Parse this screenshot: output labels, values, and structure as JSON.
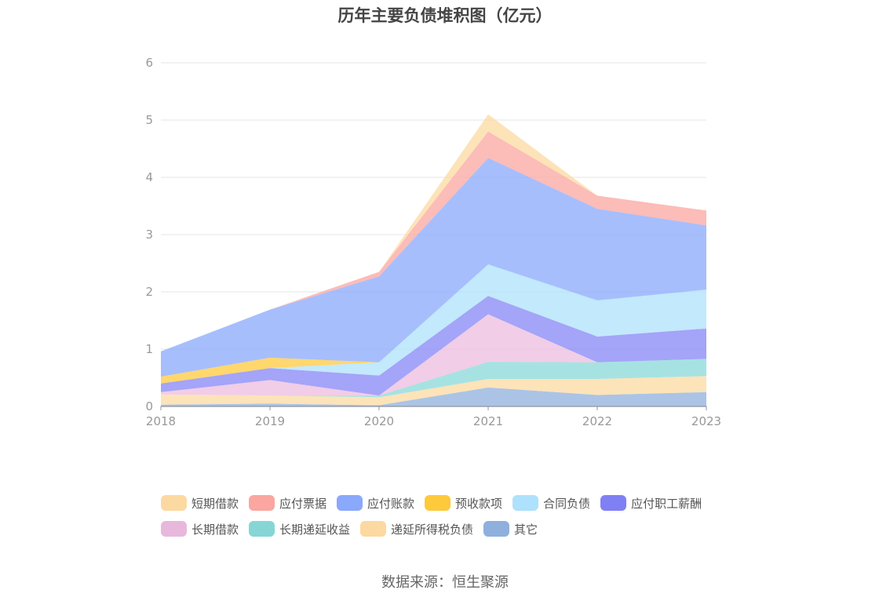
{
  "chart_data": {
    "type": "area",
    "stacked": true,
    "title": "历年主要负债堆积图（亿元）",
    "x": [
      "2018",
      "2019",
      "2020",
      "2021",
      "2022",
      "2023"
    ],
    "ylim": [
      0,
      6
    ],
    "yticks": [
      "0",
      "1",
      "2",
      "3",
      "4",
      "5",
      "6"
    ],
    "grid": true,
    "legend_position": "bottom",
    "series": [
      {
        "name": "其它",
        "color": "#8fb0dd",
        "values": [
          0.03,
          0.05,
          0.02,
          0.33,
          0.2,
          0.25
        ]
      },
      {
        "name": "递延所得税负债",
        "color": "#fcd9a0",
        "values": [
          0.18,
          0.14,
          0.14,
          0.15,
          0.28,
          0.28
        ]
      },
      {
        "name": "长期递延收益",
        "color": "#8ad8d8",
        "values": [
          0.0,
          0.0,
          0.03,
          0.3,
          0.29,
          0.3
        ]
      },
      {
        "name": "长期借款",
        "color": "#ecbcdf",
        "values": [
          0.04,
          0.27,
          0.0,
          0.83,
          0.0,
          0.0
        ]
      },
      {
        "name": "应付职工薪酬",
        "color": "#8585f5",
        "values": [
          0.15,
          0.21,
          0.35,
          0.32,
          0.45,
          0.53
        ]
      },
      {
        "name": "合同负债",
        "color": "#aee1fb",
        "values": [
          0.0,
          0.0,
          0.23,
          0.55,
          0.63,
          0.68
        ]
      },
      {
        "name": "预收款项",
        "color": "#ffc93c",
        "values": [
          0.12,
          0.18,
          0.0,
          0.0,
          0.0,
          0.0
        ]
      },
      {
        "name": "应付账款",
        "color": "#8aa8fc",
        "values": [
          0.44,
          0.84,
          1.5,
          1.86,
          1.6,
          1.12
        ]
      },
      {
        "name": "应付票据",
        "color": "#fba6a0",
        "values": [
          0.0,
          0.0,
          0.08,
          0.46,
          0.23,
          0.26
        ]
      },
      {
        "name": "短期借款",
        "color": "#fcd9a0",
        "values": [
          0.0,
          0.0,
          0.0,
          0.3,
          0.0,
          0.0
        ]
      }
    ]
  },
  "legend": [
    {
      "label": "短期借款",
      "color": "#fcd9a0"
    },
    {
      "label": "应付票据",
      "color": "#fba6a0"
    },
    {
      "label": "应付账款",
      "color": "#8aa8fc"
    },
    {
      "label": "预收款项",
      "color": "#ffc93c"
    },
    {
      "label": "合同负债",
      "color": "#aee1fb"
    },
    {
      "label": "应付职工薪酬",
      "color": "#8080f5"
    },
    {
      "label": "长期借款",
      "color": "#e8b8dc"
    },
    {
      "label": "长期递延收益",
      "color": "#86d6d6"
    },
    {
      "label": "递延所得税负债",
      "color": "#fcd9a0"
    },
    {
      "label": "其它",
      "color": "#8fb0dd"
    }
  ],
  "source": "数据来源：恒生聚源"
}
